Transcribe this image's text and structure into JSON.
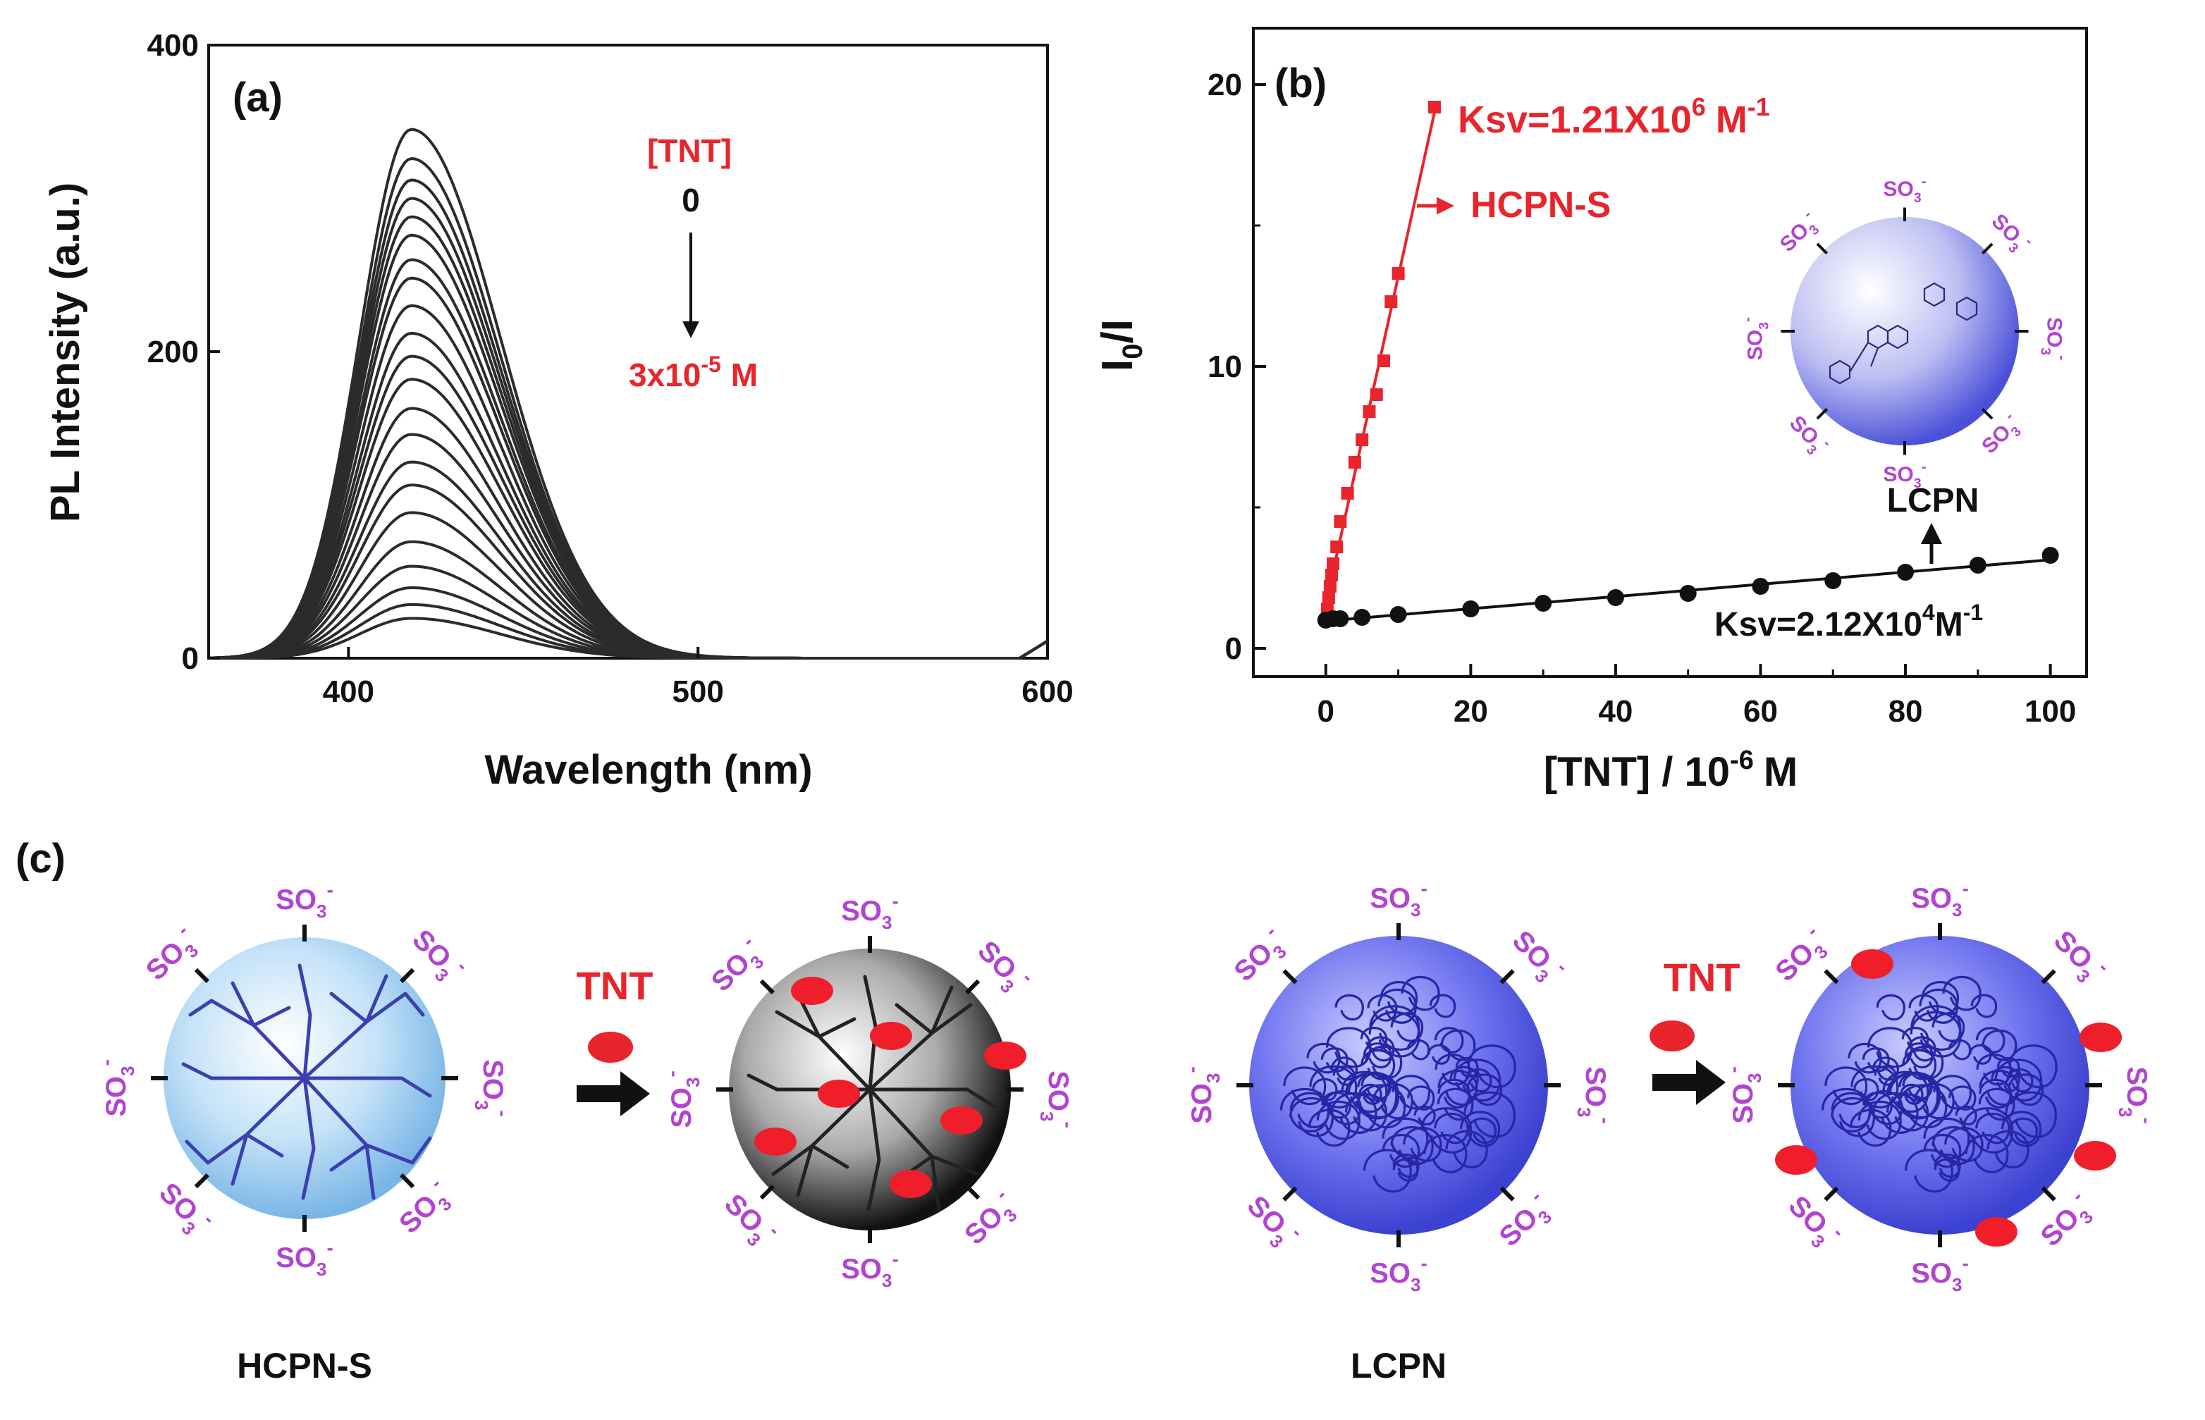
{
  "chart_data": [
    {
      "panel_label": "(a)",
      "type": "line",
      "title": "",
      "xlabel": "Wavelength (nm)",
      "ylabel": "PL Intensity (a.u.)",
      "xlim": [
        360,
        600
      ],
      "ylim": [
        0,
        400
      ],
      "xticks": [
        "400",
        "500",
        "600"
      ],
      "yticks": [
        "0",
        "200",
        "400"
      ],
      "peak_wavelength": 418,
      "series_peak_values": [
        345,
        326,
        312,
        300,
        288,
        276,
        260,
        248,
        230,
        212,
        197,
        182,
        163,
        146,
        128,
        113,
        95,
        76,
        60,
        46,
        35,
        26
      ],
      "annotation": {
        "label": "[TNT]",
        "start": "0",
        "end_base": "3x10",
        "end_exp": "-5",
        "end_unit": "M"
      }
    },
    {
      "panel_label": "(b)",
      "type": "scatter",
      "title": "",
      "xlabel_base": "[TNT] / 10",
      "xlabel_exp": "-6",
      "xlabel_unit": "M",
      "ylabel_main": "I",
      "ylabel_sub": "0",
      "ylabel_rest": "/I",
      "xlim": [
        -10,
        105
      ],
      "ylim": [
        -1,
        22
      ],
      "xticks": [
        "0",
        "20",
        "40",
        "60",
        "80",
        "100"
      ],
      "yticks": [
        "0",
        "10",
        "20"
      ],
      "series": [
        {
          "name": "HCPN-S",
          "color": "#e8242c",
          "x": [
            0,
            0.2,
            0.4,
            0.6,
            0.8,
            1.0,
            1.5,
            2.0,
            3.0,
            4.0,
            5.0,
            6.0,
            7.0,
            8.0,
            9.0,
            10.0,
            15.0
          ],
          "y": [
            1.0,
            1.4,
            1.8,
            2.2,
            2.6,
            3.0,
            3.6,
            4.5,
            5.5,
            6.6,
            7.4,
            8.4,
            9.0,
            10.2,
            12.3,
            13.3,
            19.2
          ],
          "ksv_base": "Ksv=1.21X10",
          "ksv_exp": "6",
          "ksv_unit": "M",
          "ksv_unit_exp": "-1"
        },
        {
          "name": "LCPN",
          "color": "#111111",
          "x": [
            0,
            1,
            2,
            5,
            10,
            20,
            30,
            40,
            50,
            60,
            70,
            80,
            90,
            100
          ],
          "y": [
            1.0,
            1.05,
            1.05,
            1.1,
            1.2,
            1.4,
            1.6,
            1.8,
            1.95,
            2.2,
            2.4,
            2.7,
            2.95,
            3.3
          ],
          "ksv_base": "Ksv=2.12X10",
          "ksv_exp": "4",
          "ksv_unit": "M",
          "ksv_unit_exp": "-1"
        }
      ],
      "inset_label": "LCPN"
    }
  ],
  "panel_c": {
    "label": "(c)",
    "group_label": "SO",
    "group_sub": "3",
    "group_charge": "-",
    "arrow_label": "TNT",
    "particle_names": [
      "HCPN-S",
      "LCPN"
    ]
  },
  "colors": {
    "red": "#e8242c",
    "purple": "#b144d0",
    "black": "#111111",
    "light_blue": "#9ccdf1",
    "royal_blue": "#4a52e0"
  }
}
